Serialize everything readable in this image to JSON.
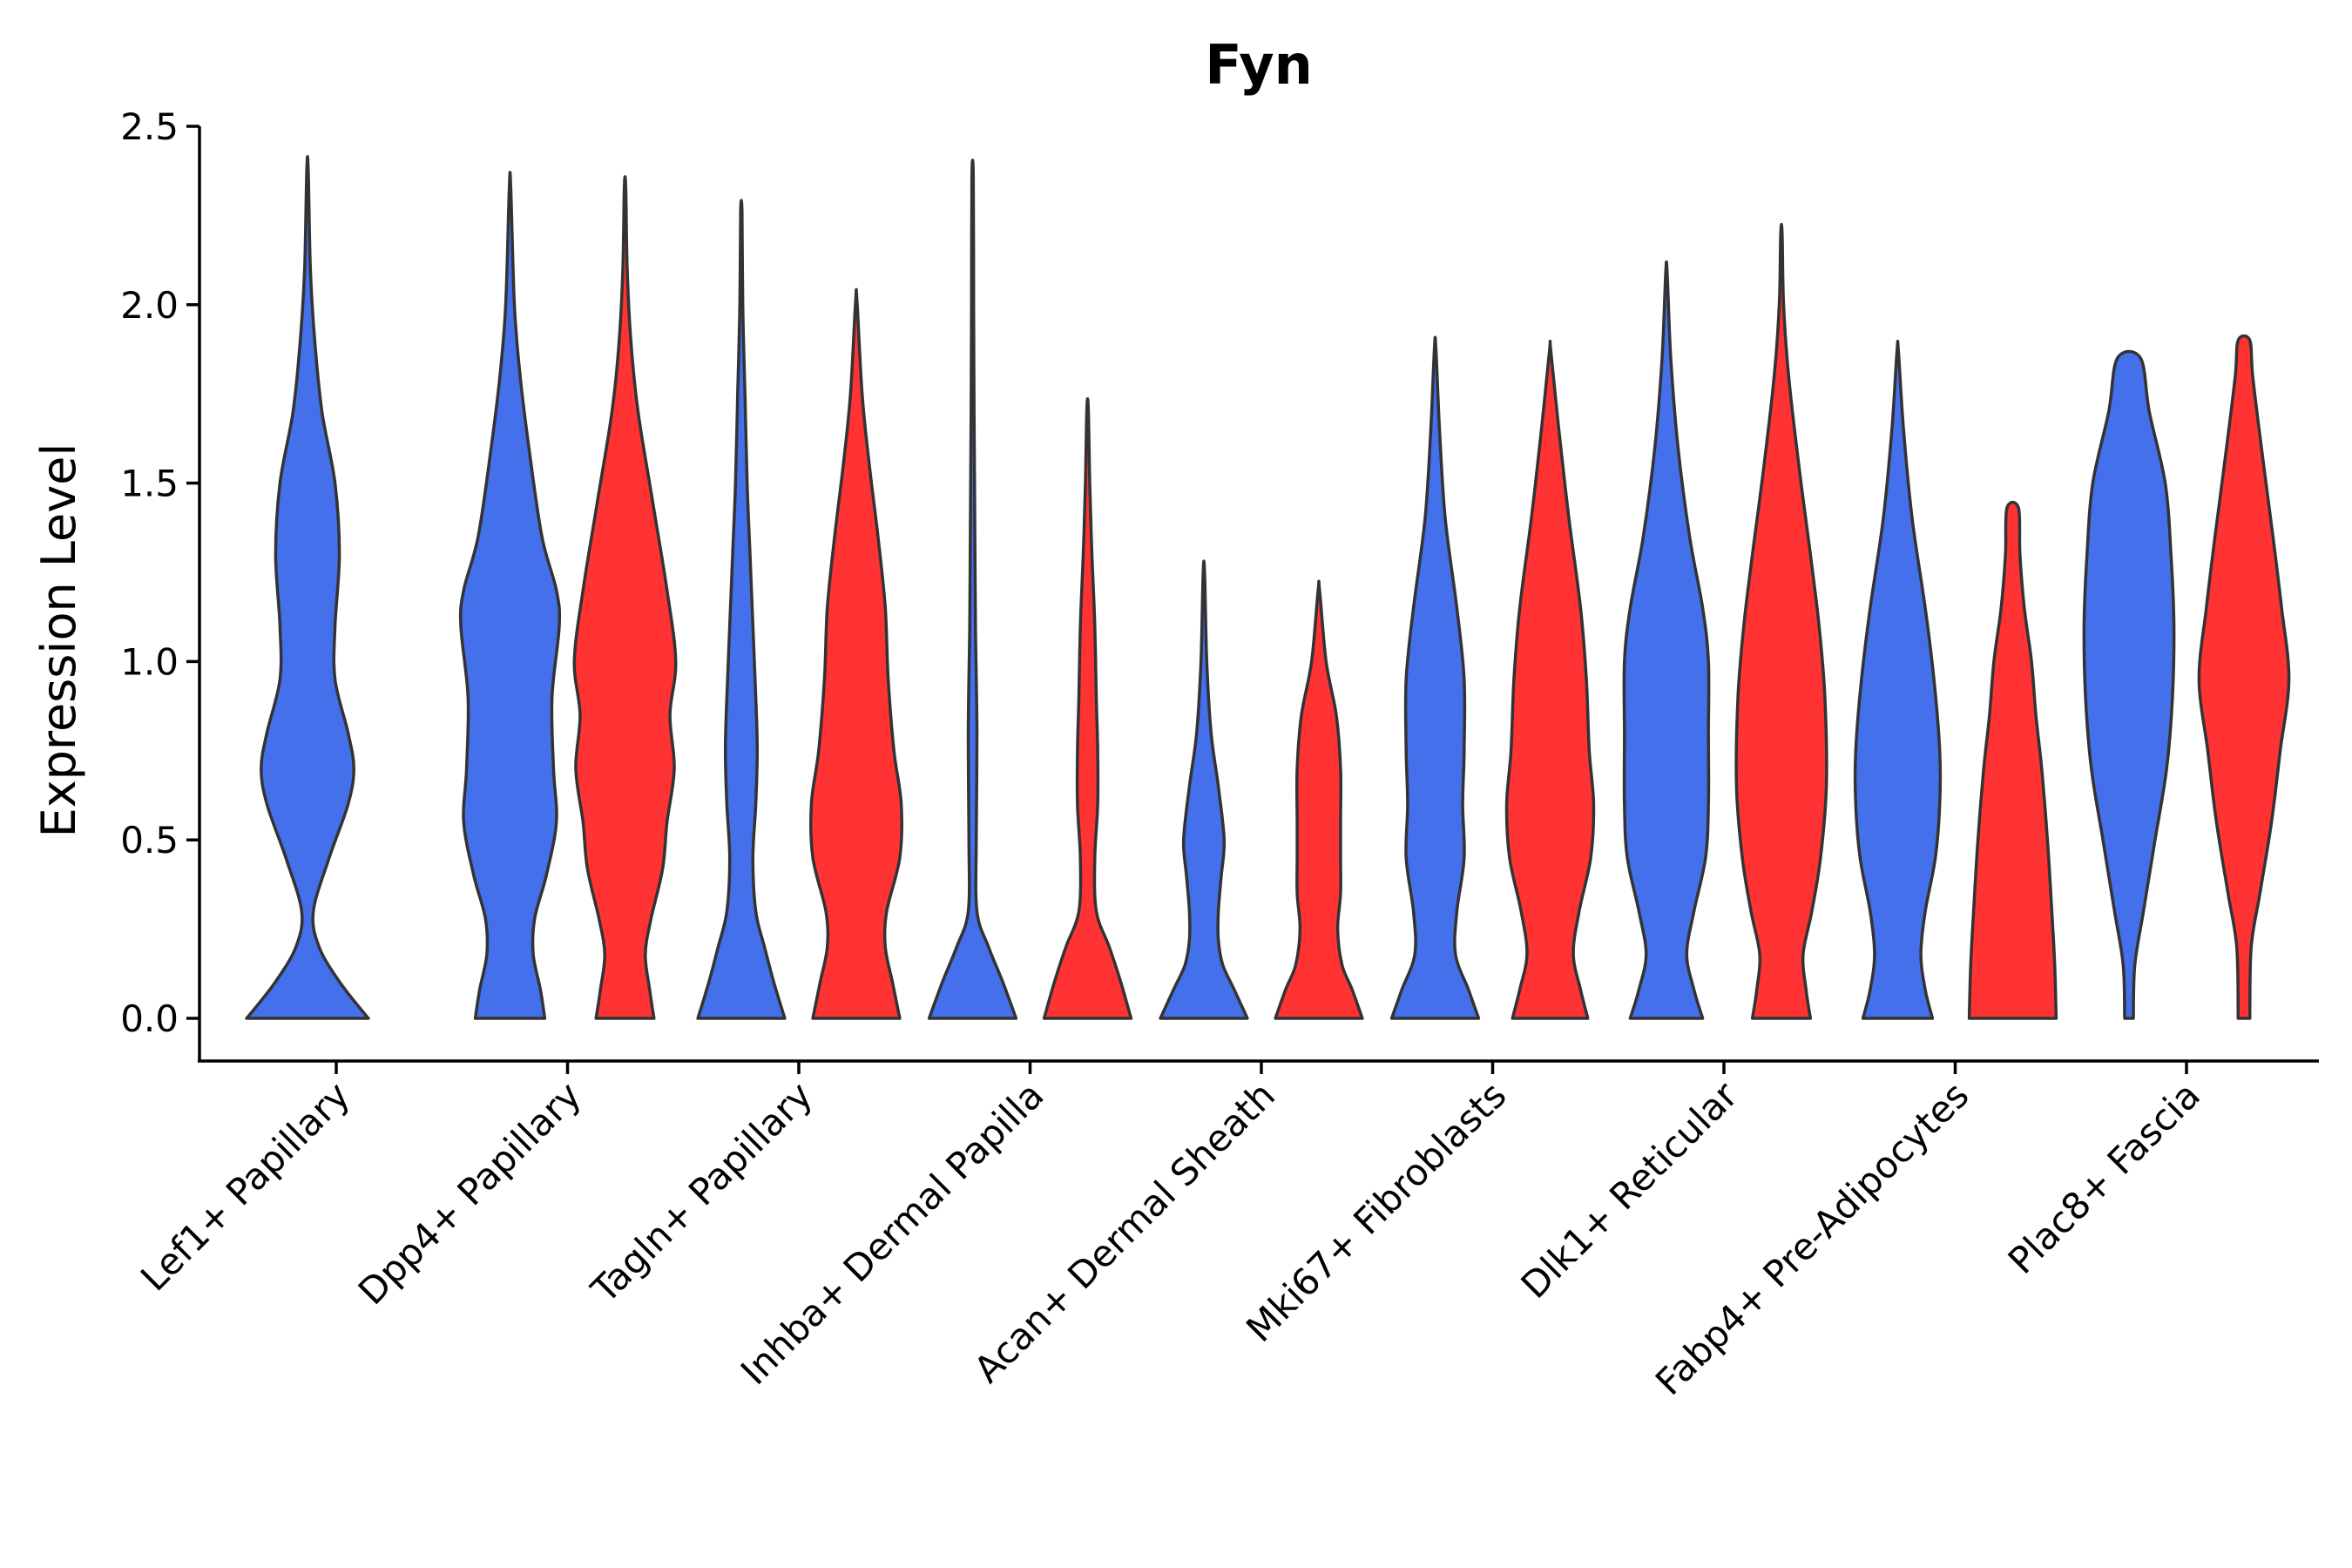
{
  "chart_data": {
    "type": "violin",
    "title": "Fyn",
    "xlabel": "",
    "ylabel": "Expression Level",
    "ylim": [
      -0.12,
      2.5
    ],
    "yticks": [
      0.0,
      0.5,
      1.0,
      1.5,
      2.0,
      2.5
    ],
    "ytick_labels": [
      "0.0",
      "0.5",
      "1.0",
      "1.5",
      "2.0",
      "2.5"
    ],
    "grid": false,
    "legend": "none",
    "colors": {
      "blue": "#4470eb",
      "red": "#ff3333",
      "outline": "#333333"
    },
    "categories": [
      "Lef1+ Papillary",
      "Dpp4+ Papillary",
      "Tagln+ Papillary",
      "Inhba+ Dermal Papilla",
      "Acan+ Dermal Sheath",
      "Mki67+ Fibroblasts",
      "Dlk1+ Reticular",
      "Fabp4+ Pre-Adipocytes",
      "Plac8+ Fascia"
    ],
    "violins": [
      {
        "category_index": 0,
        "group": "blue",
        "max": 2.38,
        "profile": [
          [
            0,
            0.84
          ],
          [
            0.1,
            0.45
          ],
          [
            0.2,
            0.16
          ],
          [
            0.3,
            0.08
          ],
          [
            0.45,
            0.3
          ],
          [
            0.6,
            0.56
          ],
          [
            0.7,
            0.64
          ],
          [
            0.8,
            0.56
          ],
          [
            0.95,
            0.38
          ],
          [
            1.1,
            0.38
          ],
          [
            1.3,
            0.44
          ],
          [
            1.5,
            0.38
          ],
          [
            1.7,
            0.2
          ],
          [
            1.9,
            0.1
          ],
          [
            2.1,
            0.04
          ],
          [
            2.38,
            0.01
          ]
        ]
      },
      {
        "category_index": 1,
        "group": "blue",
        "max": 2.33,
        "profile": [
          [
            0,
            0.48
          ],
          [
            0.08,
            0.42
          ],
          [
            0.18,
            0.32
          ],
          [
            0.28,
            0.34
          ],
          [
            0.4,
            0.5
          ],
          [
            0.55,
            0.64
          ],
          [
            0.7,
            0.6
          ],
          [
            0.9,
            0.58
          ],
          [
            1.1,
            0.68
          ],
          [
            1.2,
            0.64
          ],
          [
            1.35,
            0.44
          ],
          [
            1.6,
            0.26
          ],
          [
            1.8,
            0.14
          ],
          [
            2.0,
            0.06
          ],
          [
            2.33,
            0.01
          ]
        ]
      },
      {
        "category_index": 1,
        "group": "red",
        "max": 2.33,
        "profile": [
          [
            0,
            0.4
          ],
          [
            0.08,
            0.34
          ],
          [
            0.18,
            0.28
          ],
          [
            0.28,
            0.36
          ],
          [
            0.42,
            0.52
          ],
          [
            0.55,
            0.58
          ],
          [
            0.7,
            0.68
          ],
          [
            0.85,
            0.62
          ],
          [
            1.0,
            0.7
          ],
          [
            1.2,
            0.58
          ],
          [
            1.45,
            0.38
          ],
          [
            1.7,
            0.18
          ],
          [
            1.9,
            0.08
          ],
          [
            2.1,
            0.03
          ],
          [
            2.33,
            0.01
          ]
        ]
      },
      {
        "category_index": 2,
        "group": "blue",
        "max": 2.26,
        "profile": [
          [
            0,
            0.6
          ],
          [
            0.1,
            0.45
          ],
          [
            0.2,
            0.32
          ],
          [
            0.3,
            0.2
          ],
          [
            0.45,
            0.16
          ],
          [
            0.6,
            0.2
          ],
          [
            0.75,
            0.22
          ],
          [
            0.9,
            0.2
          ],
          [
            1.1,
            0.16
          ],
          [
            1.3,
            0.12
          ],
          [
            1.5,
            0.08
          ],
          [
            1.75,
            0.05
          ],
          [
            2.0,
            0.02
          ],
          [
            2.26,
            0.01
          ]
        ]
      },
      {
        "category_index": 2,
        "group": "red",
        "max": 2.01,
        "profile": [
          [
            0,
            0.6
          ],
          [
            0.1,
            0.5
          ],
          [
            0.2,
            0.4
          ],
          [
            0.3,
            0.42
          ],
          [
            0.45,
            0.6
          ],
          [
            0.6,
            0.62
          ],
          [
            0.75,
            0.52
          ],
          [
            0.95,
            0.44
          ],
          [
            1.15,
            0.4
          ],
          [
            1.35,
            0.3
          ],
          [
            1.55,
            0.18
          ],
          [
            1.75,
            0.08
          ],
          [
            2.01,
            0.01
          ]
        ]
      },
      {
        "category_index": 3,
        "group": "blue",
        "max": 2.36,
        "profile": [
          [
            0,
            0.6
          ],
          [
            0.1,
            0.42
          ],
          [
            0.2,
            0.22
          ],
          [
            0.3,
            0.06
          ],
          [
            0.5,
            0.05
          ],
          [
            0.8,
            0.06
          ],
          [
            1.1,
            0.04
          ],
          [
            1.4,
            0.03
          ],
          [
            1.7,
            0.02
          ],
          [
            2.0,
            0.015
          ],
          [
            2.36,
            0.01
          ]
        ]
      },
      {
        "category_index": 3,
        "group": "red",
        "max": 1.71,
        "profile": [
          [
            0,
            0.6
          ],
          [
            0.1,
            0.46
          ],
          [
            0.2,
            0.3
          ],
          [
            0.3,
            0.12
          ],
          [
            0.45,
            0.1
          ],
          [
            0.6,
            0.14
          ],
          [
            0.75,
            0.14
          ],
          [
            0.9,
            0.12
          ],
          [
            1.1,
            0.1
          ],
          [
            1.3,
            0.06
          ],
          [
            1.5,
            0.03
          ],
          [
            1.71,
            0.01
          ]
        ]
      },
      {
        "category_index": 4,
        "group": "blue",
        "max": 1.25,
        "profile": [
          [
            0,
            0.6
          ],
          [
            0.08,
            0.42
          ],
          [
            0.15,
            0.26
          ],
          [
            0.22,
            0.2
          ],
          [
            0.3,
            0.2
          ],
          [
            0.4,
            0.24
          ],
          [
            0.5,
            0.28
          ],
          [
            0.65,
            0.2
          ],
          [
            0.8,
            0.1
          ],
          [
            1.0,
            0.04
          ],
          [
            1.25,
            0.01
          ]
        ]
      },
      {
        "category_index": 4,
        "group": "red",
        "max": 1.2,
        "profile": [
          [
            0,
            0.6
          ],
          [
            0.08,
            0.46
          ],
          [
            0.15,
            0.32
          ],
          [
            0.25,
            0.26
          ],
          [
            0.35,
            0.3
          ],
          [
            0.45,
            0.3
          ],
          [
            0.55,
            0.3
          ],
          [
            0.7,
            0.3
          ],
          [
            0.85,
            0.24
          ],
          [
            1.0,
            0.1
          ],
          [
            1.2,
            0.01
          ]
        ]
      },
      {
        "category_index": 5,
        "group": "blue",
        "max": 1.88,
        "profile": [
          [
            0,
            0.6
          ],
          [
            0.08,
            0.46
          ],
          [
            0.18,
            0.28
          ],
          [
            0.3,
            0.3
          ],
          [
            0.45,
            0.4
          ],
          [
            0.6,
            0.38
          ],
          [
            0.75,
            0.4
          ],
          [
            0.95,
            0.4
          ],
          [
            1.15,
            0.3
          ],
          [
            1.4,
            0.14
          ],
          [
            1.65,
            0.06
          ],
          [
            1.88,
            0.01
          ]
        ]
      },
      {
        "category_index": 5,
        "group": "red",
        "max": 1.87,
        "profile": [
          [
            0,
            0.52
          ],
          [
            0.08,
            0.42
          ],
          [
            0.18,
            0.32
          ],
          [
            0.3,
            0.4
          ],
          [
            0.45,
            0.56
          ],
          [
            0.6,
            0.6
          ],
          [
            0.75,
            0.54
          ],
          [
            0.95,
            0.5
          ],
          [
            1.15,
            0.42
          ],
          [
            1.4,
            0.26
          ],
          [
            1.65,
            0.12
          ],
          [
            1.87,
            0.01
          ]
        ]
      },
      {
        "category_index": 6,
        "group": "blue",
        "max": 2.09,
        "profile": [
          [
            0,
            0.5
          ],
          [
            0.08,
            0.38
          ],
          [
            0.18,
            0.28
          ],
          [
            0.3,
            0.38
          ],
          [
            0.45,
            0.54
          ],
          [
            0.6,
            0.58
          ],
          [
            0.8,
            0.58
          ],
          [
            1.0,
            0.58
          ],
          [
            1.15,
            0.5
          ],
          [
            1.35,
            0.32
          ],
          [
            1.6,
            0.16
          ],
          [
            1.85,
            0.06
          ],
          [
            2.09,
            0.01
          ]
        ]
      },
      {
        "category_index": 6,
        "group": "red",
        "max": 2.2,
        "profile": [
          [
            0,
            0.4
          ],
          [
            0.08,
            0.34
          ],
          [
            0.18,
            0.3
          ],
          [
            0.3,
            0.42
          ],
          [
            0.45,
            0.54
          ],
          [
            0.65,
            0.62
          ],
          [
            0.9,
            0.6
          ],
          [
            1.1,
            0.52
          ],
          [
            1.3,
            0.4
          ],
          [
            1.55,
            0.24
          ],
          [
            1.8,
            0.1
          ],
          [
            2.0,
            0.03
          ],
          [
            2.2,
            0.01
          ]
        ]
      },
      {
        "category_index": 7,
        "group": "blue",
        "max": 1.87,
        "profile": [
          [
            0,
            0.48
          ],
          [
            0.08,
            0.38
          ],
          [
            0.18,
            0.32
          ],
          [
            0.3,
            0.38
          ],
          [
            0.45,
            0.52
          ],
          [
            0.6,
            0.58
          ],
          [
            0.75,
            0.58
          ],
          [
            0.95,
            0.5
          ],
          [
            1.15,
            0.38
          ],
          [
            1.4,
            0.2
          ],
          [
            1.65,
            0.08
          ],
          [
            1.87,
            0.01
          ]
        ]
      },
      {
        "category_index": 7,
        "group": "red",
        "max": 1.43,
        "profile": [
          [
            0,
            0.6
          ],
          [
            0.15,
            0.58
          ],
          [
            0.3,
            0.54
          ],
          [
            0.5,
            0.48
          ],
          [
            0.7,
            0.4
          ],
          [
            0.85,
            0.32
          ],
          [
            1.0,
            0.26
          ],
          [
            1.15,
            0.16
          ],
          [
            1.3,
            0.1
          ],
          [
            1.43,
            0.08
          ]
        ]
      },
      {
        "category_index": 8,
        "group": "blue",
        "max": 1.85,
        "profile": [
          [
            0,
            0.06
          ],
          [
            0.15,
            0.08
          ],
          [
            0.3,
            0.2
          ],
          [
            0.5,
            0.36
          ],
          [
            0.7,
            0.52
          ],
          [
            0.9,
            0.6
          ],
          [
            1.1,
            0.62
          ],
          [
            1.3,
            0.58
          ],
          [
            1.5,
            0.5
          ],
          [
            1.7,
            0.28
          ],
          [
            1.85,
            0.16
          ]
        ]
      },
      {
        "category_index": 8,
        "group": "red",
        "max": 1.9,
        "profile": [
          [
            0,
            0.08
          ],
          [
            0.2,
            0.1
          ],
          [
            0.35,
            0.22
          ],
          [
            0.55,
            0.38
          ],
          [
            0.75,
            0.5
          ],
          [
            0.95,
            0.62
          ],
          [
            1.15,
            0.52
          ],
          [
            1.35,
            0.4
          ],
          [
            1.6,
            0.24
          ],
          [
            1.8,
            0.12
          ],
          [
            1.9,
            0.08
          ]
        ]
      }
    ]
  }
}
